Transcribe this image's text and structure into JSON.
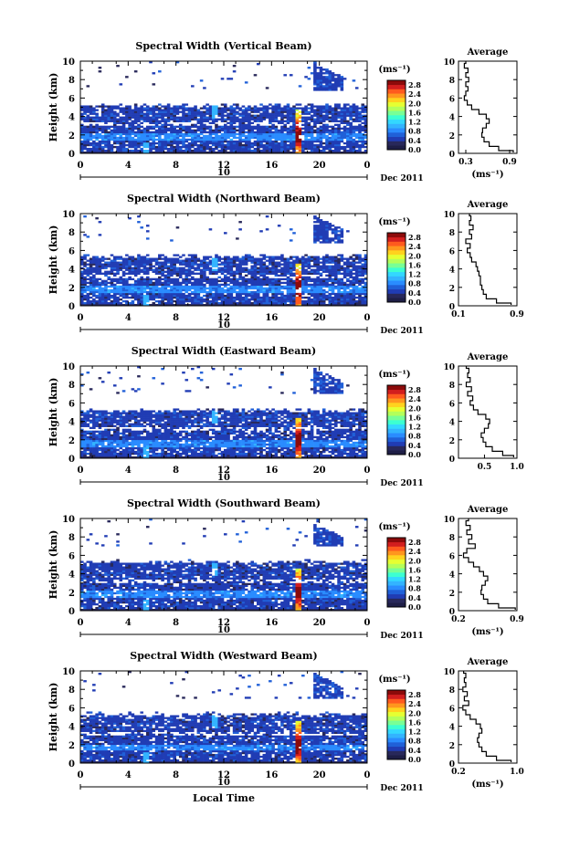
{
  "figure": {
    "bottom_xlabel": "Local Time",
    "colors": {
      "colormap": [
        "#1e1e46",
        "#28285a",
        "#203cb4",
        "#2060d8",
        "#2a8cff",
        "#33b4ff",
        "#33d8ff",
        "#3cffd2",
        "#78ff96",
        "#b4ff5a",
        "#e6ff32",
        "#ffd21e",
        "#ff961e",
        "#ff5a1e",
        "#d21e1e",
        "#8c0a0a"
      ],
      "line": "#000000"
    }
  },
  "chart_data": [
    {
      "type": "heatmap",
      "title": "Spectral Width (Vertical Beam)",
      "ylabel": "Height (km)",
      "yticks": [
        "0",
        "2",
        "4",
        "6",
        "8",
        "10"
      ],
      "ylim": [
        0,
        10
      ],
      "xticks": [
        "0",
        "4",
        "8",
        "12",
        "16",
        "20",
        "0"
      ],
      "xlim": [
        0,
        24
      ],
      "date_marker": "10",
      "date_label": "Dec 2011",
      "colorbar": {
        "unit": "(ms⁻¹)",
        "ticks": [
          "0.0",
          "0.4",
          "0.8",
          "1.2",
          "1.6",
          "2.0",
          "2.4",
          "2.8"
        ],
        "range": [
          0,
          3.0
        ]
      },
      "features": {
        "cloud_top_km": 5.2,
        "bright_band_km": 1.8,
        "convective_hour": 18.2,
        "convective_top_km": 4.8,
        "cirrus_hours": [
          19.5,
          22.0
        ],
        "cirrus_km": [
          6.8,
          9.8
        ]
      },
      "profile": {
        "title": "Average",
        "xlabel": "(ms⁻¹)",
        "xticks": [
          "0.3",
          "0.9"
        ],
        "xlim": [
          0.2,
          1.0
        ],
        "heights": [
          0.1,
          0.5,
          1.0,
          1.5,
          2.0,
          2.5,
          3.0,
          3.5,
          4.0,
          4.5,
          5.0,
          5.5,
          6.0,
          6.5,
          7.0,
          7.5,
          8.0,
          8.5,
          9.0,
          9.5,
          10.0
        ],
        "values": [
          0.95,
          0.75,
          0.62,
          0.55,
          0.52,
          0.53,
          0.58,
          0.62,
          0.58,
          0.48,
          0.38,
          0.32,
          0.28,
          0.3,
          0.33,
          0.3,
          0.34,
          0.3,
          0.33,
          0.28,
          0.3
        ]
      }
    },
    {
      "type": "heatmap",
      "title": "Spectral Width (Northward Beam)",
      "ylabel": "Height (km)",
      "yticks": [
        "0",
        "2",
        "4",
        "6",
        "8",
        "10"
      ],
      "ylim": [
        0,
        10
      ],
      "xticks": [
        "0",
        "4",
        "8",
        "12",
        "16",
        "20",
        "0"
      ],
      "xlim": [
        0,
        24
      ],
      "date_marker": "10",
      "date_label": "Dec 2011",
      "colorbar": {
        "unit": "(ms⁻¹)",
        "ticks": [
          "0.0",
          "0.4",
          "0.8",
          "1.2",
          "1.6",
          "2.0",
          "2.4",
          "2.8"
        ],
        "range": [
          0,
          3.0
        ]
      },
      "features": {
        "cloud_top_km": 5.4,
        "bright_band_km": 1.8,
        "convective_hour": 18.2,
        "convective_top_km": 4.6,
        "cirrus_hours": [
          19.5,
          22.0
        ],
        "cirrus_km": [
          6.8,
          9.8
        ]
      },
      "profile": {
        "title": "Average",
        "xlabel": "",
        "xticks": [
          "0.1",
          "0.9"
        ],
        "xlim": [
          0.1,
          0.9
        ],
        "heights": [
          0.1,
          0.5,
          1.0,
          1.5,
          2.0,
          2.5,
          3.0,
          3.5,
          4.0,
          4.5,
          5.0,
          5.5,
          6.0,
          6.5,
          7.0,
          7.5,
          8.0,
          8.5,
          9.0,
          9.5,
          10.0
        ],
        "values": [
          0.82,
          0.62,
          0.48,
          0.44,
          0.42,
          0.4,
          0.4,
          0.38,
          0.36,
          0.34,
          0.28,
          0.26,
          0.22,
          0.26,
          0.2,
          0.28,
          0.25,
          0.3,
          0.25,
          0.27,
          0.25
        ]
      }
    },
    {
      "type": "heatmap",
      "title": "Spectral Width (Eastward Beam)",
      "ylabel": "Height (km)",
      "yticks": [
        "0",
        "2",
        "4",
        "6",
        "8",
        "10"
      ],
      "ylim": [
        0,
        10
      ],
      "xticks": [
        "0",
        "4",
        "8",
        "12",
        "16",
        "20",
        "0"
      ],
      "xlim": [
        0,
        24
      ],
      "date_marker": "10",
      "date_label": "Dec 2011",
      "colorbar": {
        "unit": "(ms⁻¹)",
        "ticks": [
          "0.0",
          "0.4",
          "0.8",
          "1.2",
          "1.6",
          "2.0",
          "2.4",
          "2.8"
        ],
        "range": [
          0,
          3.0
        ]
      },
      "features": {
        "cloud_top_km": 5.2,
        "bright_band_km": 1.6,
        "convective_hour": 18.2,
        "convective_top_km": 4.4,
        "cirrus_hours": [
          19.5,
          22.0
        ],
        "cirrus_km": [
          7.0,
          9.8
        ]
      },
      "profile": {
        "title": "Average",
        "xlabel": "",
        "xticks": [
          "0.5",
          "1.0"
        ],
        "xlim": [
          0.1,
          1.0
        ],
        "heights": [
          0.1,
          0.5,
          1.0,
          1.5,
          2.0,
          2.5,
          3.0,
          3.5,
          4.0,
          4.5,
          5.0,
          5.5,
          6.0,
          6.5,
          7.0,
          7.5,
          8.0,
          8.5,
          9.0,
          9.5,
          10.0
        ],
        "values": [
          0.95,
          0.78,
          0.62,
          0.52,
          0.48,
          0.45,
          0.5,
          0.56,
          0.58,
          0.52,
          0.4,
          0.33,
          0.28,
          0.32,
          0.24,
          0.3,
          0.22,
          0.28,
          0.24,
          0.26,
          0.22
        ]
      }
    },
    {
      "type": "heatmap",
      "title": "Spectral Width (Southward Beam)",
      "ylabel": "Height (km)",
      "yticks": [
        "0",
        "2",
        "4",
        "6",
        "8",
        "10"
      ],
      "ylim": [
        0,
        10
      ],
      "xticks": [
        "0",
        "4",
        "8",
        "12",
        "16",
        "20",
        "0"
      ],
      "xlim": [
        0,
        24
      ],
      "date_marker": "10",
      "date_label": "Dec 2011",
      "colorbar": {
        "unit": "(ms⁻¹)",
        "ticks": [
          "0.0",
          "0.4",
          "0.8",
          "1.2",
          "1.6",
          "2.0",
          "2.4",
          "2.8"
        ],
        "range": [
          0,
          3.0
        ]
      },
      "features": {
        "cloud_top_km": 5.3,
        "bright_band_km": 1.8,
        "convective_hour": 18.2,
        "convective_top_km": 4.6,
        "cirrus_hours": [
          19.5,
          22.0
        ],
        "cirrus_km": [
          7.0,
          9.5
        ]
      },
      "profile": {
        "title": "Average",
        "xlabel": "(ms⁻¹)",
        "xticks": [
          "0.2",
          "0.9"
        ],
        "xlim": [
          0.2,
          0.9
        ],
        "heights": [
          0.1,
          0.5,
          1.0,
          1.5,
          2.0,
          2.5,
          3.0,
          3.5,
          4.0,
          4.5,
          5.0,
          5.5,
          6.0,
          6.5,
          7.0,
          7.5,
          8.0,
          8.5,
          9.0,
          9.5,
          10.0
        ],
        "values": [
          0.88,
          0.68,
          0.55,
          0.5,
          0.47,
          0.48,
          0.52,
          0.55,
          0.5,
          0.45,
          0.38,
          0.32,
          0.26,
          0.3,
          0.4,
          0.32,
          0.36,
          0.3,
          0.34,
          0.29,
          0.32
        ]
      }
    },
    {
      "type": "heatmap",
      "title": "Spectral Width (Westward Beam)",
      "ylabel": "Height (km)",
      "yticks": [
        "0",
        "2",
        "4",
        "6",
        "8",
        "10"
      ],
      "ylim": [
        0,
        10
      ],
      "xticks": [
        "0",
        "4",
        "8",
        "12",
        "16",
        "20",
        "0"
      ],
      "xlim": [
        0,
        24
      ],
      "date_marker": "10",
      "date_label": "Dec 2011",
      "colorbar": {
        "unit": "(ms⁻¹)",
        "ticks": [
          "0.0",
          "0.4",
          "0.8",
          "1.2",
          "1.6",
          "2.0",
          "2.4",
          "2.8"
        ],
        "range": [
          0,
          3.0
        ]
      },
      "features": {
        "cloud_top_km": 5.3,
        "bright_band_km": 1.7,
        "convective_hour": 18.2,
        "convective_top_km": 4.6,
        "cirrus_hours": [
          19.5,
          22.0
        ],
        "cirrus_km": [
          7.0,
          9.8
        ]
      },
      "profile": {
        "title": "Average",
        "xlabel": "(ms⁻¹)",
        "xticks": [
          "0.2",
          "1.0"
        ],
        "xlim": [
          0.2,
          1.0
        ],
        "heights": [
          0.1,
          0.5,
          1.0,
          1.5,
          2.0,
          2.5,
          3.0,
          3.5,
          4.0,
          4.5,
          5.0,
          5.5,
          6.0,
          6.5,
          7.0,
          7.5,
          8.0,
          8.5,
          9.0,
          9.5,
          10.0
        ],
        "values": [
          0.92,
          0.72,
          0.58,
          0.52,
          0.48,
          0.46,
          0.48,
          0.52,
          0.5,
          0.44,
          0.36,
          0.3,
          0.26,
          0.34,
          0.28,
          0.32,
          0.26,
          0.3,
          0.28,
          0.3,
          0.27
        ]
      }
    }
  ]
}
